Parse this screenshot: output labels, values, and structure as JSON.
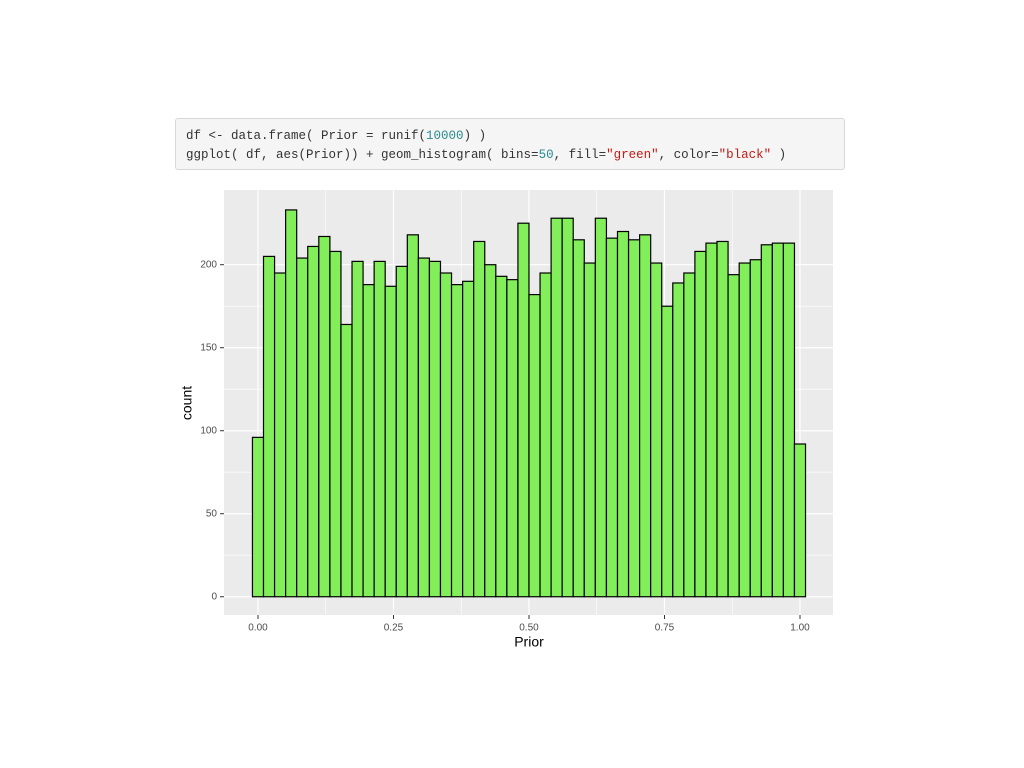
{
  "code": [
    [
      {
        "text": "df <- data.frame( Prior = runif(",
        "color": "#333333"
      },
      {
        "text": "10000",
        "color": "#2a8c8c"
      },
      {
        "text": ") )",
        "color": "#333333"
      }
    ],
    [
      {
        "text": "ggplot( df, aes(Prior)) + geom_histogram( bins=",
        "color": "#333333"
      },
      {
        "text": "50",
        "color": "#2a8c8c"
      },
      {
        "text": ", fill=",
        "color": "#333333"
      },
      {
        "text": "\"green\"",
        "color": "#c41a16"
      },
      {
        "text": ", color=",
        "color": "#333333"
      },
      {
        "text": "\"black\"",
        "color": "#c41a16"
      },
      {
        "text": " )",
        "color": "#333333"
      }
    ]
  ],
  "chart_data": {
    "type": "histogram",
    "xlabel": "Prior",
    "ylabel": "count",
    "fill": "#82ee5a",
    "edgecolor": "#000000",
    "grid": true,
    "bins": [
      -0.0102,
      0.0102,
      0.0306,
      0.051,
      0.0714,
      0.0918,
      0.1122,
      0.1327,
      0.1531,
      0.1735,
      0.1939,
      0.2143,
      0.2347,
      0.2551,
      0.2755,
      0.2959,
      0.3163,
      0.3367,
      0.3571,
      0.3776,
      0.398,
      0.4184,
      0.4388,
      0.4592,
      0.4796,
      0.5,
      0.5204,
      0.5408,
      0.5612,
      0.5816,
      0.602,
      0.6224,
      0.6429,
      0.6633,
      0.6837,
      0.7041,
      0.7245,
      0.7449,
      0.7653,
      0.7857,
      0.8061,
      0.8265,
      0.8469,
      0.8673,
      0.8878,
      0.9082,
      0.9286,
      0.949,
      0.9694,
      0.9898,
      1.0102
    ],
    "values": [
      96,
      205,
      195,
      233,
      204,
      211,
      217,
      208,
      164,
      202,
      188,
      202,
      187,
      199,
      218,
      204,
      202,
      195,
      188,
      190,
      214,
      200,
      193,
      191,
      225,
      182,
      195,
      228,
      228,
      215,
      201,
      228,
      216,
      220,
      215,
      218,
      201,
      175,
      189,
      195,
      208,
      213,
      214,
      194,
      201,
      203,
      212,
      213,
      213,
      92
    ],
    "xlim": [
      -0.0627,
      1.0609
    ],
    "ylim": [
      -11,
      245
    ],
    "xticks": [
      {
        "value": 0,
        "label": "0.00"
      },
      {
        "value": 0.25,
        "label": "0.25"
      },
      {
        "value": 0.5,
        "label": "0.50"
      },
      {
        "value": 0.75,
        "label": "0.75"
      },
      {
        "value": 1,
        "label": "1.00"
      }
    ],
    "yticks": [
      0,
      50,
      100,
      150,
      200
    ]
  }
}
